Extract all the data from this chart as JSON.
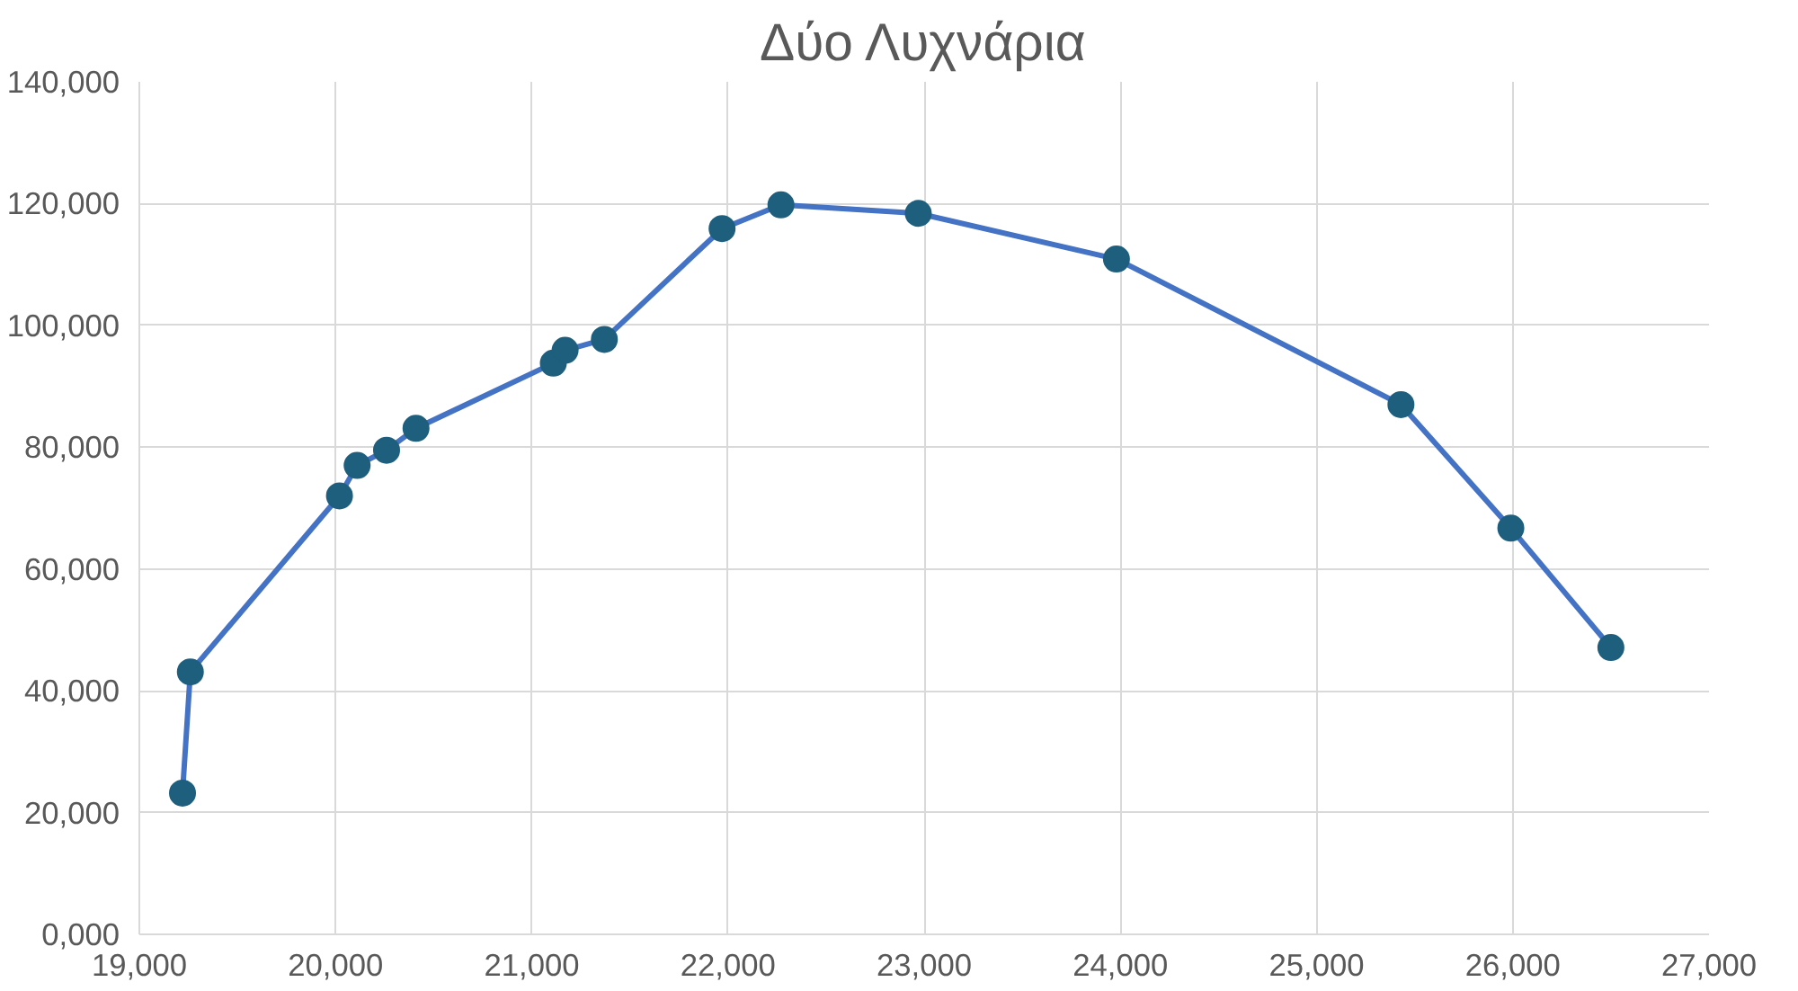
{
  "chart_data": {
    "type": "line",
    "title": "Δύο Λυχνάρια",
    "x": [
      19220,
      19260,
      20020,
      20110,
      20260,
      20410,
      21110,
      21170,
      21370,
      21970,
      22270,
      22970,
      23980,
      25430,
      25990,
      26500
    ],
    "series": [
      {
        "color": "#4472c4",
        "values": [
          23200,
          43100,
          72000,
          77000,
          79500,
          83100,
          93800,
          95900,
          97700,
          115900,
          119800,
          118400,
          110900,
          87000,
          66700,
          47100
        ]
      }
    ],
    "xlim": [
      19000,
      27000
    ],
    "ylim": [
      0,
      140000
    ],
    "xticks": [
      {
        "value": 19000,
        "label": "19,000"
      },
      {
        "value": 20000,
        "label": "20,000"
      },
      {
        "value": 21000,
        "label": "21,000"
      },
      {
        "value": 22000,
        "label": "22,000"
      },
      {
        "value": 23000,
        "label": "23,000"
      },
      {
        "value": 24000,
        "label": "24,000"
      },
      {
        "value": 25000,
        "label": "25,000"
      },
      {
        "value": 26000,
        "label": "26,000"
      },
      {
        "value": 27000,
        "label": "27,000"
      }
    ],
    "yticks": [
      {
        "value": 0,
        "label": "0,000"
      },
      {
        "value": 20000,
        "label": "20,000"
      },
      {
        "value": 40000,
        "label": "40,000"
      },
      {
        "value": 60000,
        "label": "60,000"
      },
      {
        "value": 80000,
        "label": "80,000"
      },
      {
        "value": 100000,
        "label": "100,000"
      },
      {
        "value": 120000,
        "label": "120,000"
      },
      {
        "value": 140000,
        "label": "140,000"
      }
    ],
    "grid": true,
    "marker": "circle",
    "line_style": "solid"
  }
}
